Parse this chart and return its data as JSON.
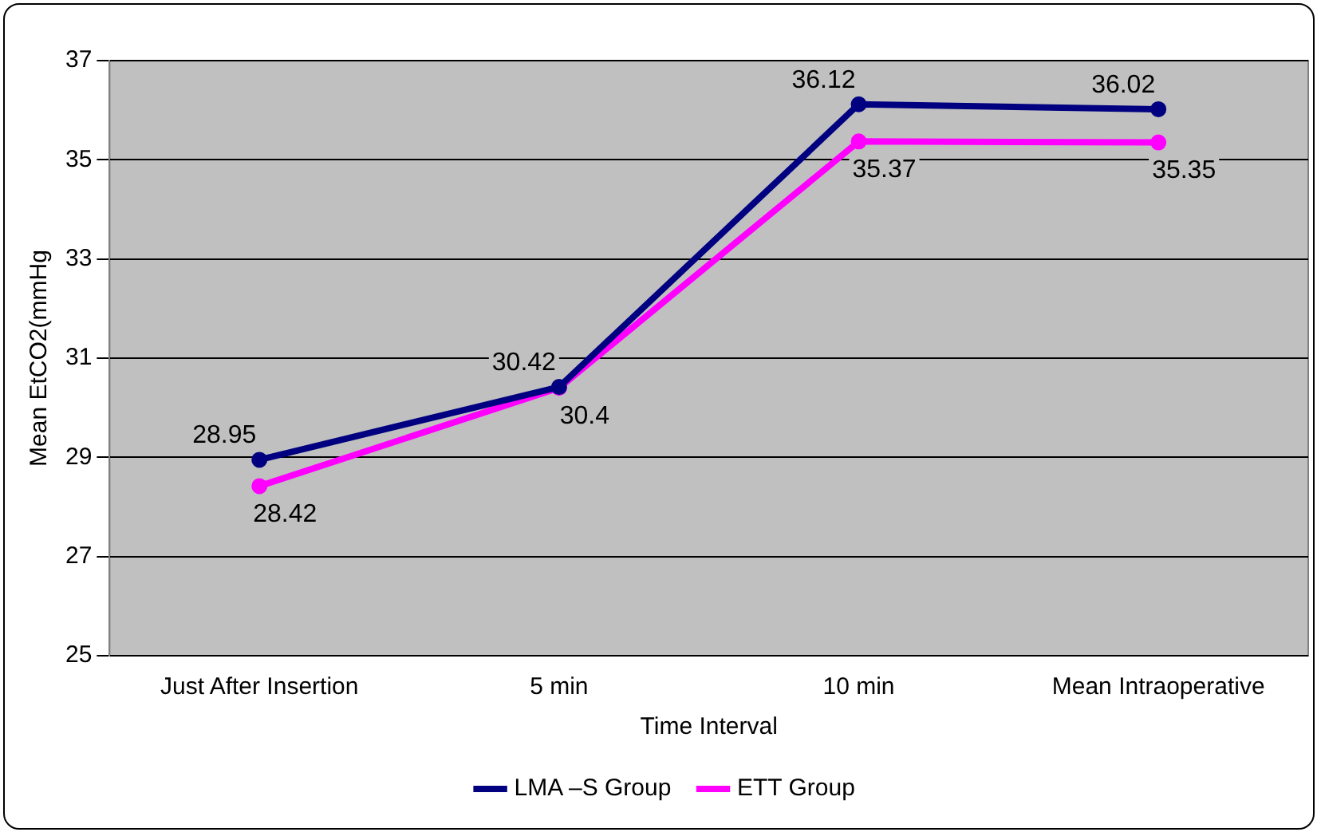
{
  "chart_data": {
    "type": "line",
    "xlabel": "Time Interval",
    "ylabel": "Mean EtCO2(mmHg",
    "categories": [
      "Just After Insertion",
      "5 min",
      "10 min",
      "Mean Intraoperative"
    ],
    "series": [
      {
        "name": "LMA –S Group",
        "color": "#000080",
        "values": [
          28.95,
          30.42,
          36.12,
          36.02
        ]
      },
      {
        "name": "ETT Group",
        "color": "#ff00ff",
        "values": [
          28.42,
          30.4,
          35.37,
          35.35
        ]
      }
    ],
    "ylim": [
      25,
      37
    ],
    "yticks": [
      25,
      27,
      29,
      31,
      33,
      35,
      37
    ],
    "grid": "y",
    "legend": "bottom",
    "marker": "circle",
    "line_style": "solid",
    "data_labels": true
  }
}
